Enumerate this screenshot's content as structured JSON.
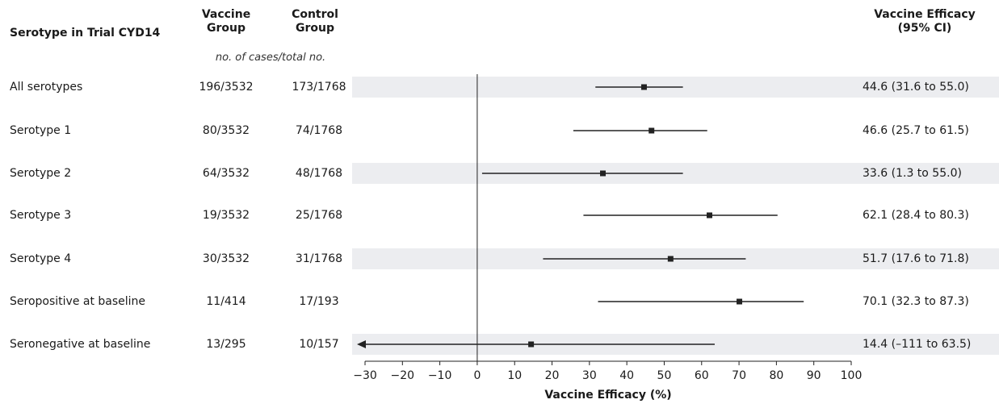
{
  "headers": {
    "subgroup": "Serotype in Trial CYD14",
    "vaccine_line1": "Vaccine",
    "vaccine_line2": "Group",
    "control_line1": "Control",
    "control_line2": "Group",
    "cases_note": "no. of cases/total no.",
    "efficacy_line1": "Vaccine Efficacy",
    "efficacy_line2": "(95% CI)"
  },
  "colors": {
    "band": "#ecedf0",
    "mark": "#222222",
    "text": "#1a1a1a"
  },
  "chart_data": {
    "type": "forest",
    "xlabel": "Vaccine Efficacy (%)",
    "xlim": [
      -30,
      100
    ],
    "xticks": [
      -30,
      -20,
      -10,
      0,
      10,
      20,
      30,
      40,
      50,
      60,
      70,
      80,
      90,
      100
    ],
    "xtick_labels": [
      "−30",
      "−20",
      "−10",
      "0",
      "10",
      "20",
      "30",
      "40",
      "50",
      "60",
      "70",
      "80",
      "90",
      "100"
    ],
    "reference_line": 0,
    "rows": [
      {
        "label": "All serotypes",
        "vaccine": "196/3532",
        "control": "173/1768",
        "estimate": 44.6,
        "lower": 31.6,
        "upper": 55.0,
        "ci_text": "44.6 (31.6 to 55.0)",
        "arrow_left": false
      },
      {
        "label": "Serotype 1",
        "vaccine": "80/3532",
        "control": "74/1768",
        "estimate": 46.6,
        "lower": 25.7,
        "upper": 61.5,
        "ci_text": "46.6 (25.7 to 61.5)",
        "arrow_left": false
      },
      {
        "label": "Serotype 2",
        "vaccine": "64/3532",
        "control": "48/1768",
        "estimate": 33.6,
        "lower": 1.3,
        "upper": 55.0,
        "ci_text": "33.6 (1.3 to 55.0)",
        "arrow_left": false
      },
      {
        "label": "Serotype 3",
        "vaccine": "19/3532",
        "control": "25/1768",
        "estimate": 62.1,
        "lower": 28.4,
        "upper": 80.3,
        "ci_text": "62.1 (28.4 to 80.3)",
        "arrow_left": false
      },
      {
        "label": "Serotype 4",
        "vaccine": "30/3532",
        "control": "31/1768",
        "estimate": 51.7,
        "lower": 17.6,
        "upper": 71.8,
        "ci_text": "51.7 (17.6 to 71.8)",
        "arrow_left": false
      },
      {
        "label": "Seropositive at baseline",
        "vaccine": "11/414",
        "control": "17/193",
        "estimate": 70.1,
        "lower": 32.3,
        "upper": 87.3,
        "ci_text": "70.1 (32.3 to 87.3)",
        "arrow_left": false
      },
      {
        "label": "Seronegative at baseline",
        "vaccine": "13/295",
        "control": "10/157",
        "estimate": 14.4,
        "lower": -111,
        "upper": 63.5,
        "ci_text": "14.4 (–111 to 63.5)",
        "arrow_left": true
      }
    ]
  }
}
